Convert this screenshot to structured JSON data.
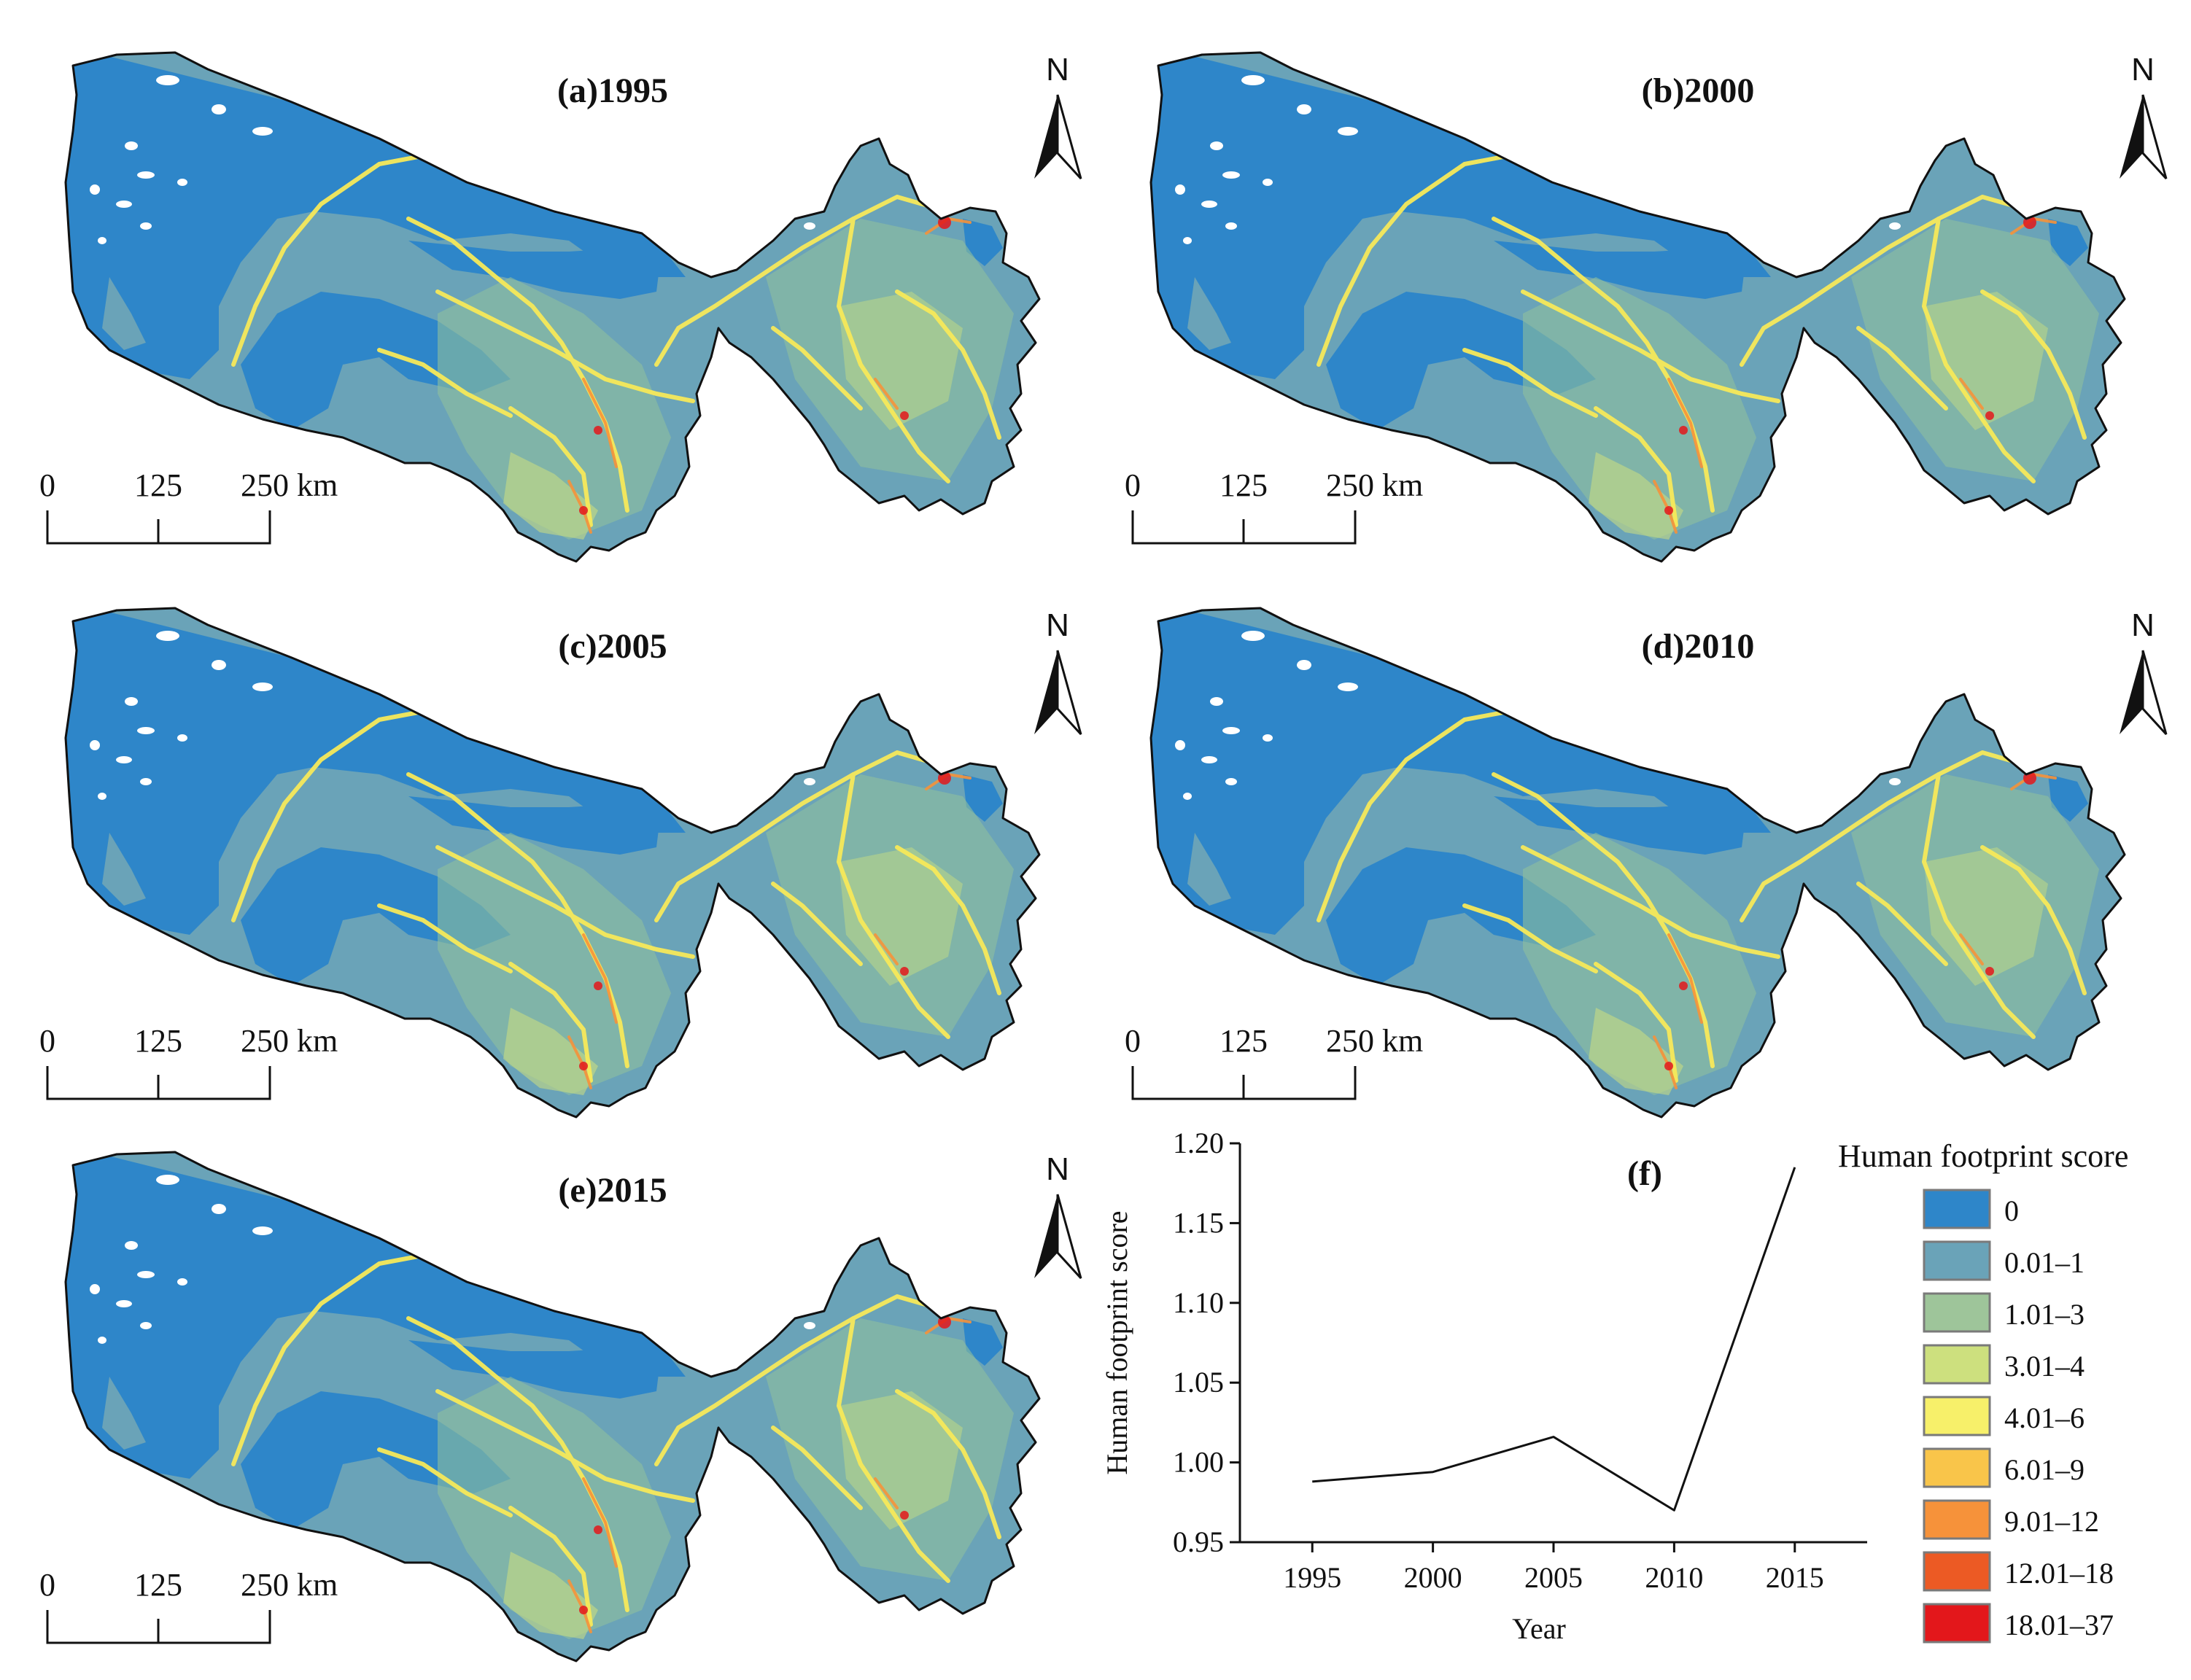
{
  "panels": [
    {
      "label": "(a)1995",
      "north": "N",
      "scale": [
        "0",
        "125",
        "250 km"
      ]
    },
    {
      "label": "(b)2000",
      "north": "N",
      "scale": [
        "0",
        "125",
        "250 km"
      ]
    },
    {
      "label": "(c)2005",
      "north": "N",
      "scale": [
        "0",
        "125",
        "250 km"
      ]
    },
    {
      "label": "(d)2010",
      "north": "N",
      "scale": [
        "0",
        "125",
        "250 km"
      ]
    },
    {
      "label": "(e)2015",
      "north": "N",
      "scale": [
        "0",
        "125",
        "250 km"
      ]
    }
  ],
  "chart_data": {
    "type": "line",
    "title": "(f)",
    "xlabel": "Year",
    "ylabel": "Human footprint score",
    "x": [
      1995,
      2000,
      2005,
      2010,
      2015
    ],
    "x_ticks": [
      "1995",
      "2000",
      "2005",
      "2010",
      "2015"
    ],
    "series": [
      {
        "values": [
          0.988,
          0.994,
          1.016,
          0.97,
          1.185
        ]
      }
    ],
    "ylim": [
      0.95,
      1.2
    ],
    "y_ticks": [
      "0.95",
      "1.00",
      "1.05",
      "1.10",
      "1.15",
      "1.20"
    ],
    "grid": false
  },
  "legend": {
    "title": "Human footprint score",
    "items": [
      {
        "label": "0",
        "color": "#2e86c9"
      },
      {
        "label": "0.01–1",
        "color": "#6aa3b8"
      },
      {
        "label": "1.01–3",
        "color": "#9ec59a"
      },
      {
        "label": "3.01–4",
        "color": "#cde07e"
      },
      {
        "label": "4.01–6",
        "color": "#f7f06a"
      },
      {
        "label": "6.01–9",
        "color": "#f9c54a"
      },
      {
        "label": "9.01–12",
        "color": "#f6923a"
      },
      {
        "label": "12.01–18",
        "color": "#ec5a24"
      },
      {
        "label": "18.01–37",
        "color": "#e3171b"
      }
    ]
  }
}
